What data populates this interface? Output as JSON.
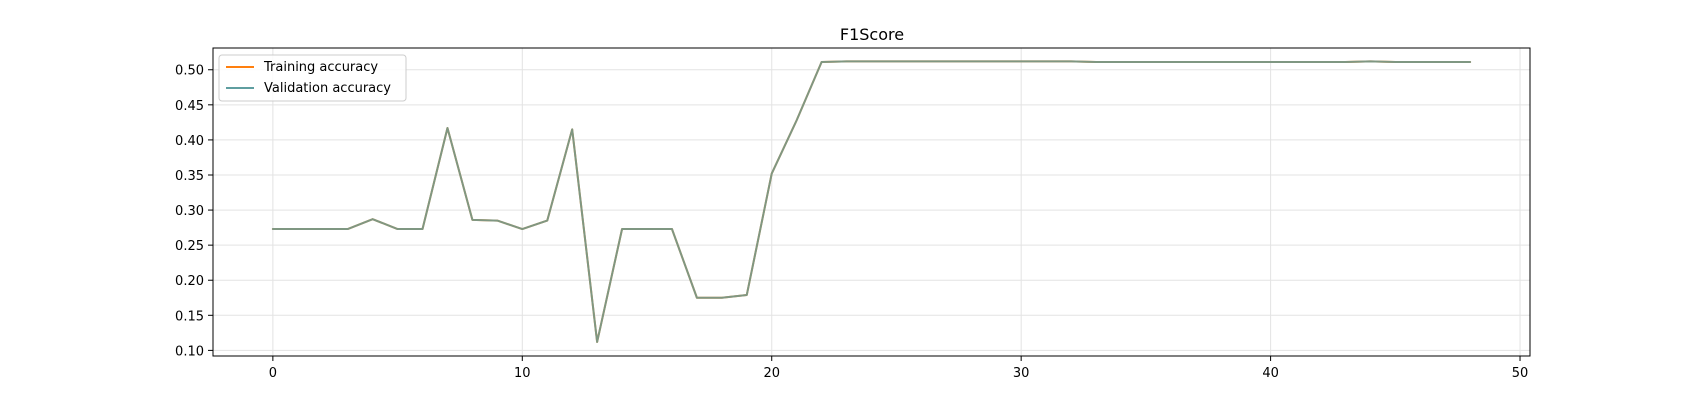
{
  "chart_data": {
    "type": "line",
    "title": "F1Score",
    "xlabel": "",
    "ylabel": "",
    "xlim": [
      -2.4,
      50.4
    ],
    "ylim": [
      0.092,
      0.531
    ],
    "xticks": [
      0,
      10,
      20,
      30,
      40,
      50
    ],
    "yticks": [
      0.1,
      0.15,
      0.2,
      0.25,
      0.3,
      0.35,
      0.4,
      0.45,
      0.5
    ],
    "grid": true,
    "legend_position": "top-left",
    "x": [
      0,
      1,
      2,
      3,
      4,
      5,
      6,
      7,
      8,
      9,
      10,
      11,
      12,
      13,
      14,
      15,
      16,
      17,
      18,
      19,
      20,
      21,
      22,
      23,
      24,
      25,
      26,
      27,
      28,
      29,
      30,
      31,
      32,
      33,
      34,
      35,
      36,
      37,
      38,
      39,
      40,
      41,
      42,
      43,
      44,
      45,
      46,
      47,
      48
    ],
    "series": [
      {
        "name": "Training accuracy",
        "color": "#ff7f0e",
        "values": [
          0.273,
          0.273,
          0.273,
          0.273,
          0.287,
          0.273,
          0.273,
          0.417,
          0.286,
          0.285,
          0.273,
          0.285,
          0.415,
          0.112,
          0.273,
          0.273,
          0.273,
          0.175,
          0.175,
          0.179,
          0.352,
          0.428,
          0.511,
          0.512,
          0.512,
          0.512,
          0.512,
          0.512,
          0.512,
          0.512,
          0.512,
          0.512,
          0.512,
          0.511,
          0.511,
          0.511,
          0.511,
          0.511,
          0.511,
          0.511,
          0.511,
          0.511,
          0.511,
          0.511,
          0.512,
          0.511,
          0.511,
          0.511,
          0.511
        ]
      },
      {
        "name": "Validation accuracy",
        "color": "#5f9ea0",
        "values": [
          0.273,
          0.273,
          0.273,
          0.273,
          0.287,
          0.273,
          0.273,
          0.417,
          0.286,
          0.285,
          0.273,
          0.285,
          0.415,
          0.112,
          0.273,
          0.273,
          0.273,
          0.175,
          0.175,
          0.179,
          0.352,
          0.428,
          0.511,
          0.512,
          0.512,
          0.512,
          0.512,
          0.512,
          0.512,
          0.512,
          0.512,
          0.512,
          0.512,
          0.511,
          0.511,
          0.511,
          0.511,
          0.511,
          0.511,
          0.511,
          0.511,
          0.511,
          0.511,
          0.511,
          0.512,
          0.511,
          0.511,
          0.511,
          0.511
        ]
      }
    ]
  }
}
